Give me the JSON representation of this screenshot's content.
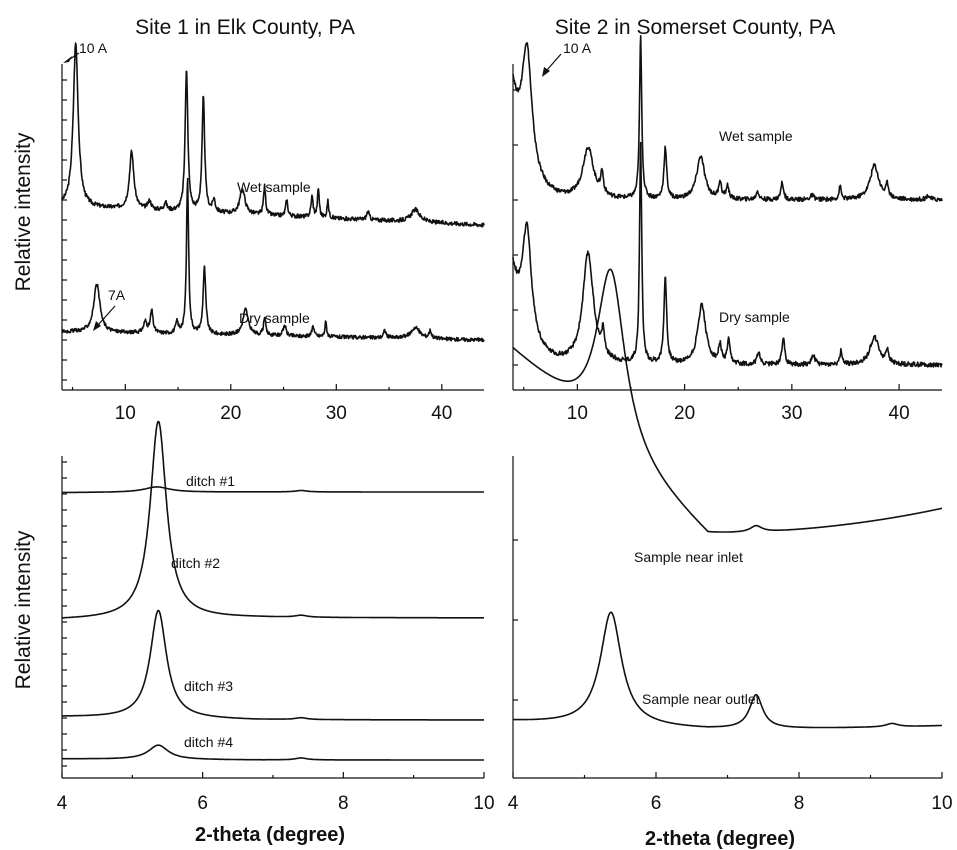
{
  "chart_data": [
    {
      "id": "p1",
      "type": "line",
      "title": "Site 1 in Elk County, PA",
      "ylabel": "Relative intensity",
      "xlabel": "",
      "xlim": [
        4,
        44
      ],
      "xticks": [
        10,
        20,
        30,
        40
      ],
      "ylim": [
        0,
        1
      ],
      "series": [
        {
          "baseline": 0.525,
          "noise": 0.01,
          "drift": 0.03,
          "peaks": [
            {
              "x": 5.3,
              "h": 0.4,
              "w": 0.28
            },
            {
              "x": 10.6,
              "h": 0.14,
              "w": 0.25
            },
            {
              "x": 12.3,
              "h": 0.02,
              "w": 0.2
            },
            {
              "x": 13.8,
              "h": 0.02,
              "w": 0.15
            },
            {
              "x": 15.8,
              "h": 0.35,
              "w": 0.15
            },
            {
              "x": 17.4,
              "h": 0.28,
              "w": 0.15
            },
            {
              "x": 18.4,
              "h": 0.03,
              "w": 0.15
            },
            {
              "x": 21.1,
              "h": 0.06,
              "w": 0.3
            },
            {
              "x": 23.2,
              "h": 0.07,
              "w": 0.12
            },
            {
              "x": 25.3,
              "h": 0.04,
              "w": 0.12
            },
            {
              "x": 27.7,
              "h": 0.05,
              "w": 0.12
            },
            {
              "x": 28.3,
              "h": 0.07,
              "w": 0.1
            },
            {
              "x": 29.2,
              "h": 0.04,
              "w": 0.1
            },
            {
              "x": 33.0,
              "h": 0.02,
              "w": 0.15
            },
            {
              "x": 37.5,
              "h": 0.03,
              "w": 0.5
            }
          ]
        },
        {
          "baseline": 0.045,
          "noise": 0.01,
          "drift": 0.015,
          "peaks": [
            {
              "x": 7.3,
              "h": 0.13,
              "w": 0.35
            },
            {
              "x": 11.9,
              "h": 0.03,
              "w": 0.2
            },
            {
              "x": 12.5,
              "h": 0.06,
              "w": 0.15
            },
            {
              "x": 14.9,
              "h": 0.03,
              "w": 0.15
            },
            {
              "x": 15.9,
              "h": 0.42,
              "w": 0.12
            },
            {
              "x": 17.5,
              "h": 0.18,
              "w": 0.15
            },
            {
              "x": 21.4,
              "h": 0.07,
              "w": 0.3
            },
            {
              "x": 23.2,
              "h": 0.05,
              "w": 0.12
            },
            {
              "x": 25.1,
              "h": 0.03,
              "w": 0.15
            },
            {
              "x": 27.8,
              "h": 0.03,
              "w": 0.12
            },
            {
              "x": 29.0,
              "h": 0.04,
              "w": 0.1
            },
            {
              "x": 34.6,
              "h": 0.02,
              "w": 0.15
            },
            {
              "x": 37.5,
              "h": 0.03,
              "w": 0.5
            },
            {
              "x": 38.9,
              "h": 0.02,
              "w": 0.15
            }
          ]
        }
      ],
      "annotations": [
        "10 A",
        "Wet sample",
        "7A",
        "Dry sample"
      ]
    },
    {
      "id": "p2",
      "type": "line",
      "title": "Site 2 in Somerset County, PA",
      "ylabel": "",
      "xlabel": "",
      "xlim": [
        4,
        44
      ],
      "xticks": [
        10,
        20,
        30,
        40
      ],
      "ylim": [
        0,
        1
      ],
      "series": [
        {
          "baseline": 0.52,
          "noise": 0.01,
          "drift": 0.0,
          "start_tail": {
            "h": 0.25,
            "decay": 1.2
          },
          "peaks": [
            {
              "x": 5.3,
              "h": 0.28,
              "w": 0.55
            },
            {
              "x": 11.0,
              "h": 0.12,
              "w": 0.6
            },
            {
              "x": 12.3,
              "h": 0.05,
              "w": 0.15
            },
            {
              "x": 15.9,
              "h": 0.38,
              "w": 0.12
            },
            {
              "x": 18.2,
              "h": 0.12,
              "w": 0.15
            },
            {
              "x": 21.5,
              "h": 0.1,
              "w": 0.45
            },
            {
              "x": 23.3,
              "h": 0.04,
              "w": 0.15
            },
            {
              "x": 24.0,
              "h": 0.03,
              "w": 0.15
            },
            {
              "x": 26.8,
              "h": 0.02,
              "w": 0.15
            },
            {
              "x": 29.1,
              "h": 0.04,
              "w": 0.15
            },
            {
              "x": 31.9,
              "h": 0.01,
              "w": 0.2
            },
            {
              "x": 34.5,
              "h": 0.03,
              "w": 0.12
            },
            {
              "x": 37.7,
              "h": 0.08,
              "w": 0.5
            },
            {
              "x": 38.9,
              "h": 0.03,
              "w": 0.15
            },
            {
              "x": 42.7,
              "h": 0.01,
              "w": 0.2
            }
          ]
        },
        {
          "baseline": 0.04,
          "noise": 0.01,
          "drift": 0.0,
          "start_tail": {
            "h": 0.2,
            "decay": 1.3
          },
          "peaks": [
            {
              "x": 5.3,
              "h": 0.23,
              "w": 0.5
            },
            {
              "x": 11.0,
              "h": 0.24,
              "w": 0.6
            },
            {
              "x": 12.4,
              "h": 0.05,
              "w": 0.15
            },
            {
              "x": 15.9,
              "h": 0.48,
              "w": 0.12
            },
            {
              "x": 18.2,
              "h": 0.19,
              "w": 0.15
            },
            {
              "x": 21.6,
              "h": 0.13,
              "w": 0.45
            },
            {
              "x": 23.3,
              "h": 0.04,
              "w": 0.15
            },
            {
              "x": 24.1,
              "h": 0.05,
              "w": 0.15
            },
            {
              "x": 26.9,
              "h": 0.03,
              "w": 0.15
            },
            {
              "x": 29.2,
              "h": 0.06,
              "w": 0.15
            },
            {
              "x": 32.0,
              "h": 0.02,
              "w": 0.2
            },
            {
              "x": 34.6,
              "h": 0.03,
              "w": 0.12
            },
            {
              "x": 37.7,
              "h": 0.06,
              "w": 0.5
            },
            {
              "x": 38.9,
              "h": 0.03,
              "w": 0.15
            }
          ]
        }
      ],
      "annotations": [
        "10 A",
        "Wet sample",
        "Dry sample"
      ]
    },
    {
      "id": "p3",
      "type": "line",
      "title": "",
      "ylabel": "Relative intensity",
      "xlabel": "2-theta (degree)",
      "xlim": [
        4,
        10
      ],
      "xticks": [
        4,
        6,
        8,
        10
      ],
      "ylim": [
        0,
        1
      ],
      "series": [
        {
          "name": "ditch #1",
          "baseline": 0.875,
          "left_base": 0.87,
          "peaks": [
            {
              "x": 5.35,
              "h": 0.045,
              "w": 0.22
            },
            {
              "x": 7.4,
              "h": 0.012,
              "w": 0.1
            }
          ]
        },
        {
          "name": "ditch #2",
          "baseline": 0.31,
          "left_base": 0.305,
          "peaks": [
            {
              "x": 5.37,
              "h": 0.52,
              "w": 0.14
            },
            {
              "x": 7.4,
              "h": 0.005,
              "w": 0.1
            }
          ]
        },
        {
          "name": "ditch #3",
          "baseline": 0.12,
          "left_base": 0.13,
          "peaks": [
            {
              "x": 5.37,
              "h": 0.36,
              "w": 0.14
            },
            {
              "x": 7.4,
              "h": 0.006,
              "w": 0.1
            }
          ]
        },
        {
          "name": "ditch #4",
          "baseline": 0.025,
          "left_base": 0.035,
          "peaks": [
            {
              "x": 5.37,
              "h": 0.13,
              "w": 0.17
            },
            {
              "x": 7.4,
              "h": 0.018,
              "w": 0.1
            }
          ]
        }
      ],
      "annotations": [
        "ditch #1",
        "ditch #2",
        "ditch #3",
        "ditch #4"
      ]
    },
    {
      "id": "p4",
      "type": "line",
      "title": "",
      "ylabel": "",
      "xlabel": "2-theta (degree)",
      "xlim": [
        4,
        10
      ],
      "xticks": [
        4,
        6,
        8,
        10
      ],
      "ylim": [
        0,
        1
      ],
      "series": [
        {
          "name": "Sample near inlet",
          "baseline": 0.14,
          "left_base": 0.5,
          "right_base": 0.2,
          "peaks": [
            {
              "x": 5.37,
              "h": 0.34,
              "w": 0.24
            },
            {
              "x": 7.4,
              "h": 0.012,
              "w": 0.1
            }
          ]
        },
        {
          "name": "Sample near outlet",
          "baseline": 0.11,
          "left_base": 0.13,
          "right_base": 0.12,
          "peaks": [
            {
              "x": 5.37,
              "h": 0.27,
              "w": 0.18
            },
            {
              "x": 7.4,
              "h": 0.08,
              "w": 0.11
            },
            {
              "x": 9.3,
              "h": 0.008,
              "w": 0.1
            }
          ]
        }
      ],
      "annotations": [
        "Sample near inlet",
        "Sample near outlet"
      ]
    }
  ]
}
